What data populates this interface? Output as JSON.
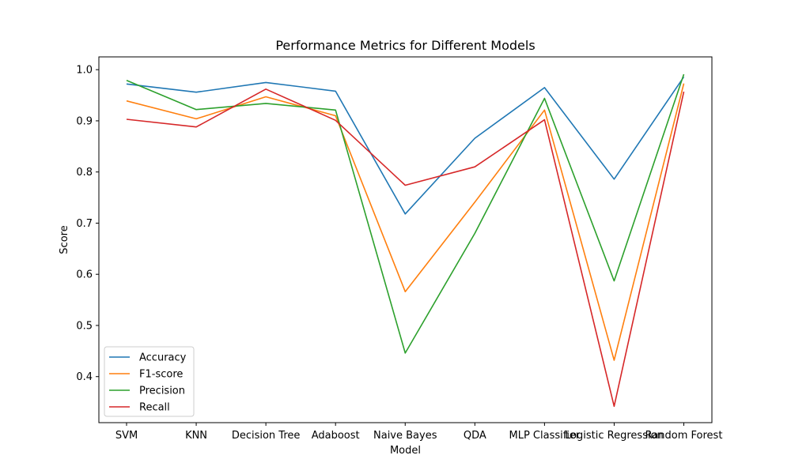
{
  "chart_data": {
    "type": "line",
    "title": "Performance Metrics for Different Models",
    "xlabel": "Model",
    "ylabel": "Score",
    "categories": [
      "SVM",
      "KNN",
      "Decision Tree",
      "Adaboost",
      "Naive Bayes",
      "QDA",
      "MLP Classifier",
      "Logistic Regression",
      "Random Forest"
    ],
    "ylim": [
      0.31,
      1.025
    ],
    "yticks": [
      0.4,
      0.5,
      0.6,
      0.7,
      0.8,
      0.9,
      1.0
    ],
    "ytick_labels": [
      "0.4",
      "0.5",
      "0.6",
      "0.7",
      "0.8",
      "0.9",
      "1.0"
    ],
    "grid": false,
    "legend_position": "lower-left",
    "series": [
      {
        "name": "Accuracy",
        "color": "#1f77b4",
        "values": [
          0.972,
          0.956,
          0.975,
          0.958,
          0.718,
          0.866,
          0.965,
          0.786,
          0.986
        ]
      },
      {
        "name": "F1-score",
        "color": "#ff7f0e",
        "values": [
          0.939,
          0.904,
          0.947,
          0.91,
          0.566,
          0.741,
          0.921,
          0.432,
          0.973
        ]
      },
      {
        "name": "Precision",
        "color": "#2ca02c",
        "values": [
          0.979,
          0.922,
          0.934,
          0.921,
          0.446,
          0.68,
          0.944,
          0.587,
          0.991
        ]
      },
      {
        "name": "Recall",
        "color": "#d62728",
        "values": [
          0.903,
          0.888,
          0.962,
          0.901,
          0.774,
          0.81,
          0.902,
          0.342,
          0.957
        ]
      }
    ]
  }
}
